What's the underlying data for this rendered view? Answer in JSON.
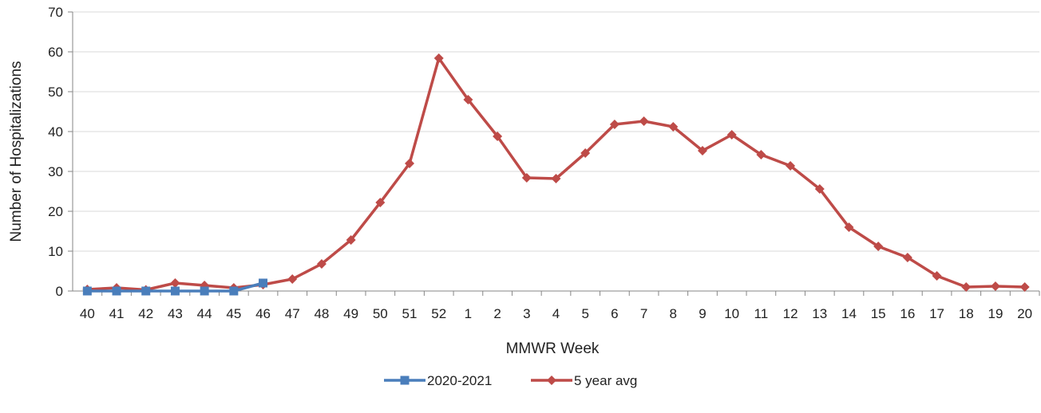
{
  "chart_data": {
    "type": "line",
    "title": "",
    "xlabel": "MMWR Week",
    "ylabel": "Number of Hospitalizations",
    "ylim": [
      0,
      70
    ],
    "yticks": [
      "0",
      "10",
      "20",
      "30",
      "40",
      "50",
      "60",
      "70"
    ],
    "grid": true,
    "legend_position": "bottom",
    "categories": [
      "40",
      "41",
      "42",
      "43",
      "44",
      "45",
      "46",
      "47",
      "48",
      "49",
      "50",
      "51",
      "52",
      "1",
      "2",
      "3",
      "4",
      "5",
      "6",
      "7",
      "8",
      "9",
      "10",
      "11",
      "12",
      "13",
      "14",
      "15",
      "16",
      "17",
      "18",
      "19",
      "20"
    ],
    "series": [
      {
        "name": "2020-2021",
        "color": "#4A7EBB",
        "marker": "square",
        "values": [
          0,
          0,
          0,
          0,
          0,
          0,
          2,
          null,
          null,
          null,
          null,
          null,
          null,
          null,
          null,
          null,
          null,
          null,
          null,
          null,
          null,
          null,
          null,
          null,
          null,
          null,
          null,
          null,
          null,
          null,
          null,
          null,
          null
        ]
      },
      {
        "name": "5 year avg",
        "color": "#BE4B48",
        "marker": "diamond",
        "values": [
          0.4,
          0.8,
          0.3,
          2.0,
          1.4,
          0.8,
          1.6,
          3.0,
          6.8,
          12.8,
          22.2,
          32.0,
          58.4,
          48.0,
          38.8,
          28.4,
          28.2,
          34.6,
          41.8,
          42.6,
          41.2,
          35.2,
          39.2,
          34.2,
          31.4,
          25.6,
          16.0,
          11.2,
          8.4,
          3.8,
          1.0,
          1.2,
          1.0
        ]
      }
    ]
  }
}
